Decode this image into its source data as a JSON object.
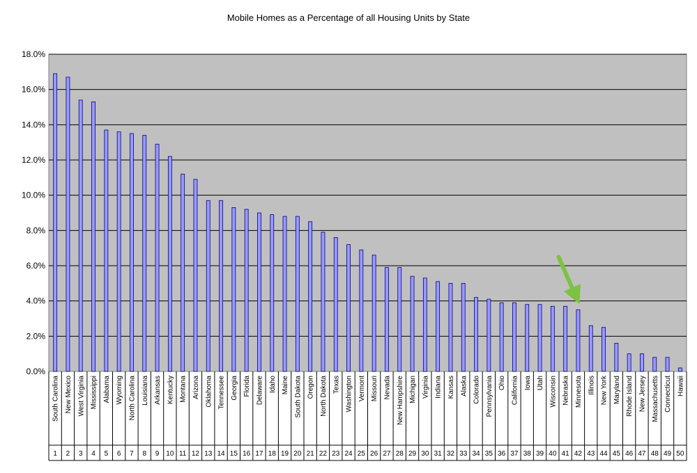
{
  "chart_data": {
    "type": "bar",
    "title": "Mobile Homes as a Percentage of all Housing Units by State",
    "xlabel": "",
    "ylabel": "",
    "ylim": [
      0,
      18
    ],
    "y_ticks": [
      "0.0%",
      "2.0%",
      "4.0%",
      "6.0%",
      "8.0%",
      "10.0%",
      "12.0%",
      "14.0%",
      "16.0%",
      "18.0%"
    ],
    "grid": true,
    "colors": {
      "plot_bg": "#c0c0c0",
      "bar_fill": "#9999ff",
      "bar_stroke": "#000080",
      "gridline": "#000000",
      "arrow": "#7dc242"
    },
    "categories": [
      "South Carolina",
      "New Mexico",
      "West Virginia",
      "Mississippi",
      "Alabama",
      "Wyoming",
      "North Carolina",
      "Louisiana",
      "Arkansas",
      "Kentucky",
      "Montana",
      "Arizona",
      "Oklahoma",
      "Tennessee",
      "Georgia",
      "Florida",
      "Delaware",
      "Idaho",
      "Maine",
      "South Dakota",
      "Oregon",
      "North Dakota",
      "Texas",
      "Washington",
      "Vermont",
      "Missouri",
      "Nevada",
      "New Hampshire",
      "Michigan",
      "Virginia",
      "Indiana",
      "Kansas",
      "Alaska",
      "Colorado",
      "Pennsylvania",
      "Ohio",
      "California",
      "Iowa",
      "Utah",
      "Wisconsin",
      "Nebraska",
      "Minnesota",
      "Illinois",
      "New York",
      "Maryland",
      "Rhode Island",
      "New Jersey",
      "Massachusetts",
      "Connecticut",
      "Hawaii"
    ],
    "ranks": [
      "1",
      "2",
      "3",
      "4",
      "5",
      "6",
      "7",
      "8",
      "9",
      "10",
      "11",
      "12",
      "13",
      "14",
      "15",
      "16",
      "17",
      "18",
      "19",
      "20",
      "21",
      "22",
      "23",
      "24",
      "25",
      "26",
      "27",
      "28",
      "29",
      "30",
      "31",
      "32",
      "33",
      "34",
      "35",
      "36",
      "37",
      "38",
      "39",
      "40",
      "41",
      "42",
      "43",
      "44",
      "45",
      "46",
      "47",
      "48",
      "49",
      "50"
    ],
    "values": [
      16.9,
      16.7,
      15.4,
      15.3,
      13.7,
      13.6,
      13.5,
      13.4,
      12.9,
      12.2,
      11.2,
      10.9,
      9.7,
      9.7,
      9.3,
      9.2,
      9.0,
      8.9,
      8.8,
      8.8,
      8.5,
      7.9,
      7.6,
      7.2,
      6.9,
      6.6,
      5.9,
      5.9,
      5.4,
      5.3,
      5.1,
      5.0,
      5.0,
      4.2,
      4.1,
      3.9,
      3.9,
      3.8,
      3.8,
      3.7,
      3.7,
      3.5,
      2.6,
      2.5,
      1.6,
      1.0,
      1.0,
      0.8,
      0.8,
      0.2
    ],
    "highlight": "Minnesota"
  }
}
